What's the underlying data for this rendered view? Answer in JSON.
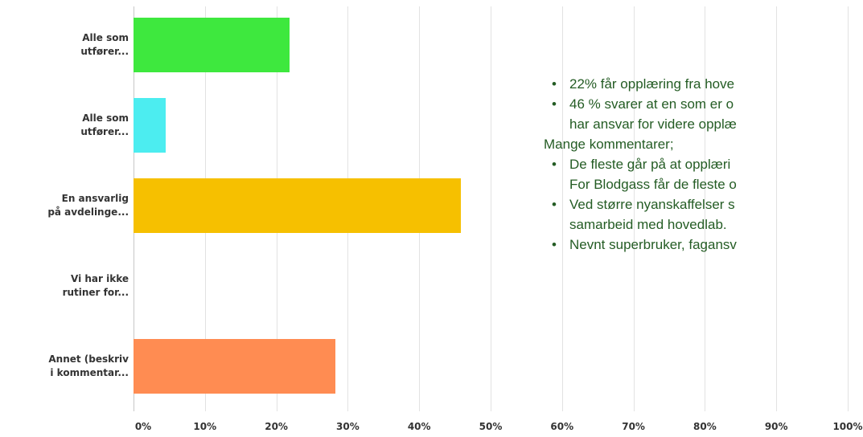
{
  "chart_data": {
    "type": "barh",
    "categories": [
      "Alle som\nutfører...",
      "Alle som\nutfører...",
      "En ansvarlig\npå avdelinge...",
      "Vi har ikke\nrutiner for...",
      "Annet (beskriv\ni kommentar..."
    ],
    "values": [
      21.9,
      4.5,
      45.8,
      0,
      28.3
    ],
    "colors": [
      "#3ee83e",
      "#4cedf0",
      "#f6c000",
      "#999999",
      "#ff8c52"
    ],
    "xlim": [
      0,
      100
    ],
    "xticks": [
      {
        "value": 0,
        "label": "0%"
      },
      {
        "value": 10,
        "label": "10%"
      },
      {
        "value": 20,
        "label": "20%"
      },
      {
        "value": 30,
        "label": "30%"
      },
      {
        "value": 40,
        "label": "40%"
      },
      {
        "value": 50,
        "label": "50%"
      },
      {
        "value": 60,
        "label": "60%"
      },
      {
        "value": 70,
        "label": "70%"
      },
      {
        "value": 80,
        "label": "80%"
      },
      {
        "value": 90,
        "label": "90%"
      },
      {
        "value": 100,
        "label": "100%"
      }
    ],
    "grid": true,
    "notes": [
      {
        "bullet": true,
        "lines": [
          "22% får opplæring fra hove"
        ]
      },
      {
        "bullet": true,
        "lines": [
          "46 % svarer at en som er o",
          "har ansvar for videre opplæ"
        ]
      },
      {
        "bullet": false,
        "lines": [
          "Mange kommentarer;"
        ]
      },
      {
        "bullet": true,
        "lines": [
          "De fleste går på at opplæri",
          "For Blodgass får de fleste o"
        ]
      },
      {
        "bullet": true,
        "lines": [
          "Ved større nyanskaffelser s",
          "samarbeid med hovedlab."
        ]
      },
      {
        "bullet": true,
        "lines": [
          "Nevnt superbruker, fagansv"
        ]
      }
    ]
  }
}
